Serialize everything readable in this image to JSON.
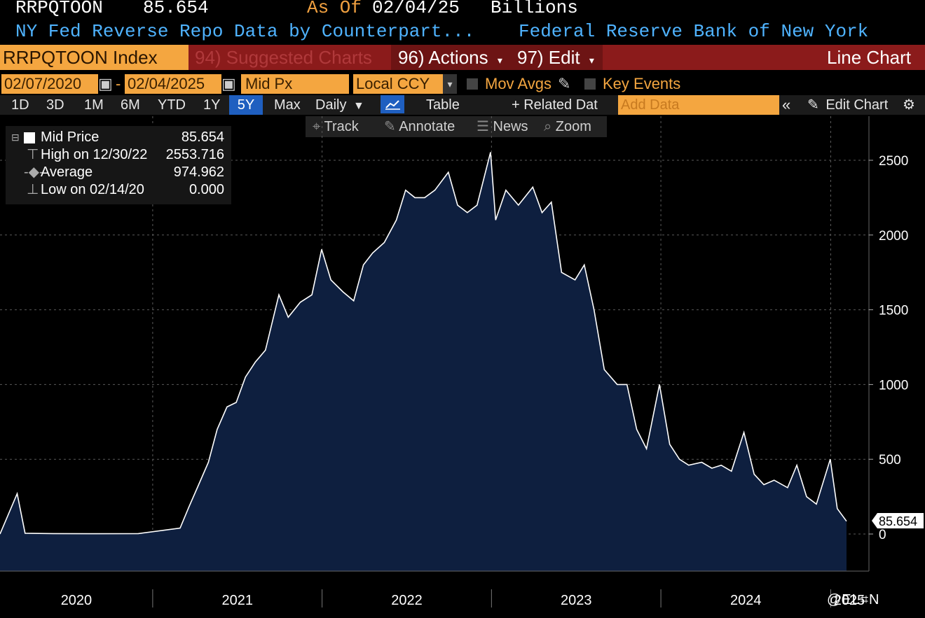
{
  "header": {
    "ticker": "RRPQTOON",
    "last_value": "85.654",
    "as_of_label": "As Of",
    "as_of_date": "02/04/25",
    "units": "Billions",
    "description": "NY Fed Reverse Repo Data by Counterpart...",
    "source": "Federal Reserve Bank of New York"
  },
  "toolbar": {
    "security": "RRPQTOON Index",
    "suggested": "94) Suggested Charts",
    "actions": "96) Actions",
    "edit": "97) Edit",
    "chart_type": "Line Chart"
  },
  "controls": {
    "start_date": "02/07/2020",
    "end_date": "02/04/2025",
    "dash": "-",
    "field": "Mid Px",
    "currency": "Local CCY",
    "mov_avgs": "Mov Avgs",
    "key_events": "Key Events"
  },
  "periods": [
    "1D",
    "3D",
    "1M",
    "6M",
    "YTD",
    "1Y",
    "5Y",
    "Max"
  ],
  "active_period": "5Y",
  "frequency": "Daily",
  "table_label": "Table",
  "related_label": "+ Related Dat",
  "add_data_placeholder": "Add Data",
  "edit_chart_label": "Edit Chart",
  "tools": [
    "Track",
    "Annotate",
    "News",
    "Zoom"
  ],
  "legend": {
    "mid_label": "Mid Price",
    "mid_value": "85.654",
    "high_label": "High on 12/30/22",
    "high_value": "2553.716",
    "avg_label": "Average",
    "avg_value": "974.962",
    "low_label": "Low on 02/14/20",
    "low_value": "0.000"
  },
  "colors": {
    "background": "#000000",
    "area_fill": "#0e1f3f",
    "line": "#ffffff",
    "header_blue": "#4fb3ff",
    "bar_red": "#8b1b1b",
    "field_orange": "#f4a640",
    "active_period": "#1f5fc0"
  },
  "watermark": "@EL⌗N",
  "chart_data": {
    "type": "area",
    "title": "NY Fed Reverse Repo Data by Counterpart...",
    "xlabel": "",
    "ylabel": "",
    "units": "Billions",
    "x_ticks": [
      "2020",
      "2021",
      "2022",
      "2023",
      "2024",
      "2025"
    ],
    "y_ticks": [
      0,
      500,
      1000,
      1500,
      2000,
      2500
    ],
    "ylim": [
      -250,
      2750
    ],
    "grid": true,
    "last_value_label": "85.654",
    "x": [
      "2020-02-07",
      "2020-03-15",
      "2020-04-01",
      "2020-06-01",
      "2020-09-01",
      "2020-12-01",
      "2021-03-01",
      "2021-03-20",
      "2021-04-10",
      "2021-05-01",
      "2021-05-20",
      "2021-06-10",
      "2021-06-30",
      "2021-07-20",
      "2021-08-10",
      "2021-09-01",
      "2021-09-30",
      "2021-10-20",
      "2021-11-15",
      "2021-12-10",
      "2021-12-31",
      "2022-01-20",
      "2022-02-15",
      "2022-03-10",
      "2022-03-31",
      "2022-04-20",
      "2022-05-15",
      "2022-06-10",
      "2022-06-30",
      "2022-07-20",
      "2022-08-10",
      "2022-09-01",
      "2022-09-30",
      "2022-10-20",
      "2022-11-10",
      "2022-12-01",
      "2022-12-30",
      "2023-01-10",
      "2023-02-01",
      "2023-02-28",
      "2023-03-31",
      "2023-04-20",
      "2023-05-10",
      "2023-06-01",
      "2023-06-30",
      "2023-07-20",
      "2023-08-10",
      "2023-09-01",
      "2023-09-29",
      "2023-10-20",
      "2023-11-10",
      "2023-12-01",
      "2023-12-29",
      "2024-01-20",
      "2024-02-10",
      "2024-03-01",
      "2024-03-29",
      "2024-04-20",
      "2024-05-10",
      "2024-06-01",
      "2024-06-28",
      "2024-07-20",
      "2024-08-10",
      "2024-09-01",
      "2024-09-30",
      "2024-10-20",
      "2024-11-10",
      "2024-12-01",
      "2024-12-31",
      "2025-01-15",
      "2025-02-04"
    ],
    "series": [
      {
        "values": [
          0,
          270,
          5,
          3,
          2,
          3,
          40,
          180,
          330,
          480,
          700,
          850,
          880,
          1050,
          1150,
          1230,
          1600,
          1450,
          1550,
          1600,
          1904,
          1700,
          1620,
          1560,
          1800,
          1880,
          1950,
          2100,
          2300,
          2250,
          2250,
          2300,
          2420,
          2200,
          2150,
          2200,
          2553.716,
          2100,
          2300,
          2200,
          2320,
          2150,
          2220,
          1750,
          1700,
          1800,
          1500,
          1100,
          1000,
          1000,
          700,
          570,
          1000,
          600,
          500,
          460,
          480,
          440,
          460,
          420,
          680,
          400,
          330,
          360,
          310,
          460,
          250,
          200,
          500,
          170,
          85.654
        ]
      }
    ]
  }
}
